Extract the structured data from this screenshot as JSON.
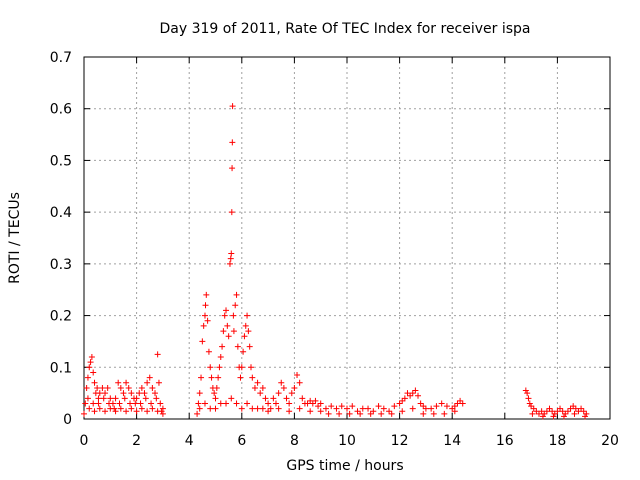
{
  "chart_data": {
    "type": "scatter",
    "title": "Day 319 of 2011, Rate Of TEC Index for receiver ispa",
    "xlabel": "GPS time / hours",
    "ylabel": "ROTI / TECUs",
    "xlim": [
      0,
      20
    ],
    "ylim": [
      0,
      0.7
    ],
    "xticks": [
      0,
      2,
      4,
      6,
      8,
      10,
      12,
      14,
      16,
      18,
      20
    ],
    "yticks": [
      0,
      0.1,
      0.2,
      0.3,
      0.4,
      0.5,
      0.6,
      0.7
    ],
    "xtick_labels": [
      "0",
      "2",
      "4",
      "6",
      "8",
      "10",
      "12",
      "14",
      "16",
      "18",
      "20"
    ],
    "ytick_labels": [
      "0",
      "0.1",
      "0.2",
      "0.3",
      "0.4",
      "0.5",
      "0.6",
      "0.7"
    ],
    "grid": true,
    "legend": "none",
    "marker": "plus",
    "series": [
      {
        "name": "ROTI",
        "color": "#ff0000",
        "points": [
          [
            0.0,
            0.01
          ],
          [
            0.05,
            0.03
          ],
          [
            0.1,
            0.06
          ],
          [
            0.15,
            0.08
          ],
          [
            0.2,
            0.1
          ],
          [
            0.25,
            0.11
          ],
          [
            0.3,
            0.12
          ],
          [
            0.35,
            0.09
          ],
          [
            0.4,
            0.07
          ],
          [
            0.45,
            0.05
          ],
          [
            0.5,
            0.06
          ],
          [
            0.55,
            0.04
          ],
          [
            0.6,
            0.05
          ],
          [
            0.7,
            0.06
          ],
          [
            0.8,
            0.05
          ],
          [
            0.9,
            0.06
          ],
          [
            1.0,
            0.04
          ],
          [
            1.1,
            0.03
          ],
          [
            1.2,
            0.04
          ],
          [
            1.3,
            0.07
          ],
          [
            1.4,
            0.06
          ],
          [
            1.5,
            0.05
          ],
          [
            1.6,
            0.07
          ],
          [
            1.7,
            0.06
          ],
          [
            1.8,
            0.05
          ],
          [
            1.9,
            0.04
          ],
          [
            2.0,
            0.04
          ],
          [
            2.1,
            0.05
          ],
          [
            2.2,
            0.06
          ],
          [
            2.3,
            0.05
          ],
          [
            2.4,
            0.07
          ],
          [
            2.5,
            0.08
          ],
          [
            2.6,
            0.06
          ],
          [
            2.7,
            0.05
          ],
          [
            2.8,
            0.125
          ],
          [
            2.85,
            0.07
          ],
          [
            2.9,
            0.03
          ],
          [
            3.0,
            0.01
          ],
          [
            0.2,
            0.02
          ],
          [
            0.4,
            0.015
          ],
          [
            0.6,
            0.02
          ],
          [
            0.8,
            0.015
          ],
          [
            1.0,
            0.02
          ],
          [
            1.2,
            0.015
          ],
          [
            1.4,
            0.02
          ],
          [
            1.6,
            0.015
          ],
          [
            1.8,
            0.02
          ],
          [
            2.0,
            0.015
          ],
          [
            2.2,
            0.02
          ],
          [
            2.4,
            0.015
          ],
          [
            2.6,
            0.02
          ],
          [
            2.8,
            0.015
          ],
          [
            3.0,
            0.02
          ],
          [
            0.15,
            0.04
          ],
          [
            0.35,
            0.03
          ],
          [
            0.55,
            0.03
          ],
          [
            0.75,
            0.04
          ],
          [
            0.95,
            0.03
          ],
          [
            1.15,
            0.02
          ],
          [
            1.35,
            0.03
          ],
          [
            1.55,
            0.04
          ],
          [
            1.75,
            0.03
          ],
          [
            1.95,
            0.03
          ],
          [
            2.15,
            0.03
          ],
          [
            2.35,
            0.04
          ],
          [
            2.55,
            0.03
          ],
          [
            2.75,
            0.04
          ],
          [
            2.95,
            0.015
          ],
          [
            4.3,
            0.01
          ],
          [
            4.35,
            0.03
          ],
          [
            4.4,
            0.05
          ],
          [
            4.45,
            0.08
          ],
          [
            4.5,
            0.15
          ],
          [
            4.55,
            0.18
          ],
          [
            4.6,
            0.2
          ],
          [
            4.62,
            0.22
          ],
          [
            4.65,
            0.24
          ],
          [
            4.7,
            0.19
          ],
          [
            4.75,
            0.13
          ],
          [
            4.8,
            0.1
          ],
          [
            4.85,
            0.08
          ],
          [
            4.9,
            0.06
          ],
          [
            4.95,
            0.05
          ],
          [
            5.0,
            0.04
          ],
          [
            5.05,
            0.06
          ],
          [
            5.1,
            0.08
          ],
          [
            5.15,
            0.1
          ],
          [
            5.2,
            0.12
          ],
          [
            5.25,
            0.14
          ],
          [
            5.3,
            0.17
          ],
          [
            5.35,
            0.2
          ],
          [
            5.4,
            0.21
          ],
          [
            5.45,
            0.18
          ],
          [
            5.5,
            0.16
          ],
          [
            5.55,
            0.3
          ],
          [
            5.58,
            0.31
          ],
          [
            5.6,
            0.32
          ],
          [
            5.62,
            0.4
          ],
          [
            5.63,
            0.485
          ],
          [
            5.64,
            0.535
          ],
          [
            5.65,
            0.605
          ],
          [
            5.68,
            0.2
          ],
          [
            5.7,
            0.17
          ],
          [
            5.75,
            0.22
          ],
          [
            5.8,
            0.24
          ],
          [
            5.85,
            0.14
          ],
          [
            5.9,
            0.1
          ],
          [
            5.95,
            0.08
          ],
          [
            6.0,
            0.1
          ],
          [
            6.05,
            0.13
          ],
          [
            6.1,
            0.16
          ],
          [
            6.15,
            0.18
          ],
          [
            6.2,
            0.2
          ],
          [
            6.25,
            0.17
          ],
          [
            6.3,
            0.14
          ],
          [
            6.35,
            0.1
          ],
          [
            6.4,
            0.08
          ],
          [
            6.5,
            0.06
          ],
          [
            6.6,
            0.07
          ],
          [
            6.7,
            0.05
          ],
          [
            6.8,
            0.06
          ],
          [
            6.9,
            0.04
          ],
          [
            4.4,
            0.02
          ],
          [
            4.6,
            0.03
          ],
          [
            4.8,
            0.02
          ],
          [
            5.0,
            0.02
          ],
          [
            5.2,
            0.03
          ],
          [
            5.4,
            0.03
          ],
          [
            5.6,
            0.04
          ],
          [
            5.8,
            0.03
          ],
          [
            6.0,
            0.02
          ],
          [
            6.2,
            0.03
          ],
          [
            6.4,
            0.02
          ],
          [
            6.6,
            0.02
          ],
          [
            6.8,
            0.02
          ],
          [
            7.0,
            0.03
          ],
          [
            7.1,
            0.02
          ],
          [
            7.2,
            0.04
          ],
          [
            7.3,
            0.03
          ],
          [
            7.4,
            0.05
          ],
          [
            7.5,
            0.07
          ],
          [
            7.6,
            0.06
          ],
          [
            7.7,
            0.04
          ],
          [
            7.8,
            0.03
          ],
          [
            7.9,
            0.05
          ],
          [
            8.0,
            0.06
          ],
          [
            8.1,
            0.085
          ],
          [
            8.2,
            0.07
          ],
          [
            8.3,
            0.04
          ],
          [
            8.4,
            0.03
          ],
          [
            8.5,
            0.03
          ],
          [
            8.6,
            0.035
          ],
          [
            8.7,
            0.03
          ],
          [
            8.8,
            0.035
          ],
          [
            8.9,
            0.025
          ],
          [
            9.0,
            0.03
          ],
          [
            7.0,
            0.015
          ],
          [
            7.4,
            0.02
          ],
          [
            7.8,
            0.015
          ],
          [
            8.2,
            0.02
          ],
          [
            8.6,
            0.015
          ],
          [
            9.0,
            0.015
          ],
          [
            9.2,
            0.02
          ],
          [
            9.4,
            0.025
          ],
          [
            9.6,
            0.02
          ],
          [
            9.8,
            0.025
          ],
          [
            10.0,
            0.02
          ],
          [
            10.2,
            0.025
          ],
          [
            10.4,
            0.015
          ],
          [
            10.6,
            0.02
          ],
          [
            10.8,
            0.02
          ],
          [
            11.0,
            0.015
          ],
          [
            11.2,
            0.025
          ],
          [
            11.4,
            0.02
          ],
          [
            11.6,
            0.015
          ],
          [
            11.8,
            0.025
          ],
          [
            12.0,
            0.03
          ],
          [
            12.1,
            0.035
          ],
          [
            12.2,
            0.04
          ],
          [
            12.3,
            0.05
          ],
          [
            12.4,
            0.045
          ],
          [
            12.5,
            0.05
          ],
          [
            12.6,
            0.055
          ],
          [
            12.7,
            0.045
          ],
          [
            12.8,
            0.03
          ],
          [
            12.9,
            0.025
          ],
          [
            13.0,
            0.02
          ],
          [
            13.2,
            0.02
          ],
          [
            13.4,
            0.025
          ],
          [
            13.6,
            0.03
          ],
          [
            13.8,
            0.025
          ],
          [
            14.0,
            0.02
          ],
          [
            14.1,
            0.025
          ],
          [
            14.2,
            0.03
          ],
          [
            14.3,
            0.035
          ],
          [
            14.4,
            0.03
          ],
          [
            9.3,
            0.01
          ],
          [
            9.7,
            0.01
          ],
          [
            10.1,
            0.01
          ],
          [
            10.5,
            0.01
          ],
          [
            10.9,
            0.01
          ],
          [
            11.3,
            0.01
          ],
          [
            11.7,
            0.01
          ],
          [
            12.1,
            0.015
          ],
          [
            12.5,
            0.02
          ],
          [
            12.9,
            0.01
          ],
          [
            13.3,
            0.01
          ],
          [
            13.7,
            0.01
          ],
          [
            14.1,
            0.015
          ],
          [
            16.8,
            0.055
          ],
          [
            16.85,
            0.05
          ],
          [
            16.9,
            0.04
          ],
          [
            16.95,
            0.03
          ],
          [
            17.0,
            0.025
          ],
          [
            17.1,
            0.02
          ],
          [
            17.2,
            0.015
          ],
          [
            17.3,
            0.01
          ],
          [
            17.4,
            0.015
          ],
          [
            17.5,
            0.01
          ],
          [
            17.6,
            0.015
          ],
          [
            17.7,
            0.02
          ],
          [
            17.8,
            0.015
          ],
          [
            17.9,
            0.01
          ],
          [
            18.0,
            0.015
          ],
          [
            18.1,
            0.02
          ],
          [
            18.2,
            0.015
          ],
          [
            18.3,
            0.01
          ],
          [
            18.4,
            0.015
          ],
          [
            18.5,
            0.02
          ],
          [
            18.6,
            0.025
          ],
          [
            18.7,
            0.02
          ],
          [
            18.8,
            0.015
          ],
          [
            18.9,
            0.02
          ],
          [
            19.0,
            0.015
          ],
          [
            19.1,
            0.01
          ],
          [
            17.05,
            0.01
          ],
          [
            17.45,
            0.005
          ],
          [
            17.85,
            0.005
          ],
          [
            18.25,
            0.005
          ],
          [
            18.65,
            0.01
          ],
          [
            19.05,
            0.005
          ]
        ]
      }
    ]
  }
}
